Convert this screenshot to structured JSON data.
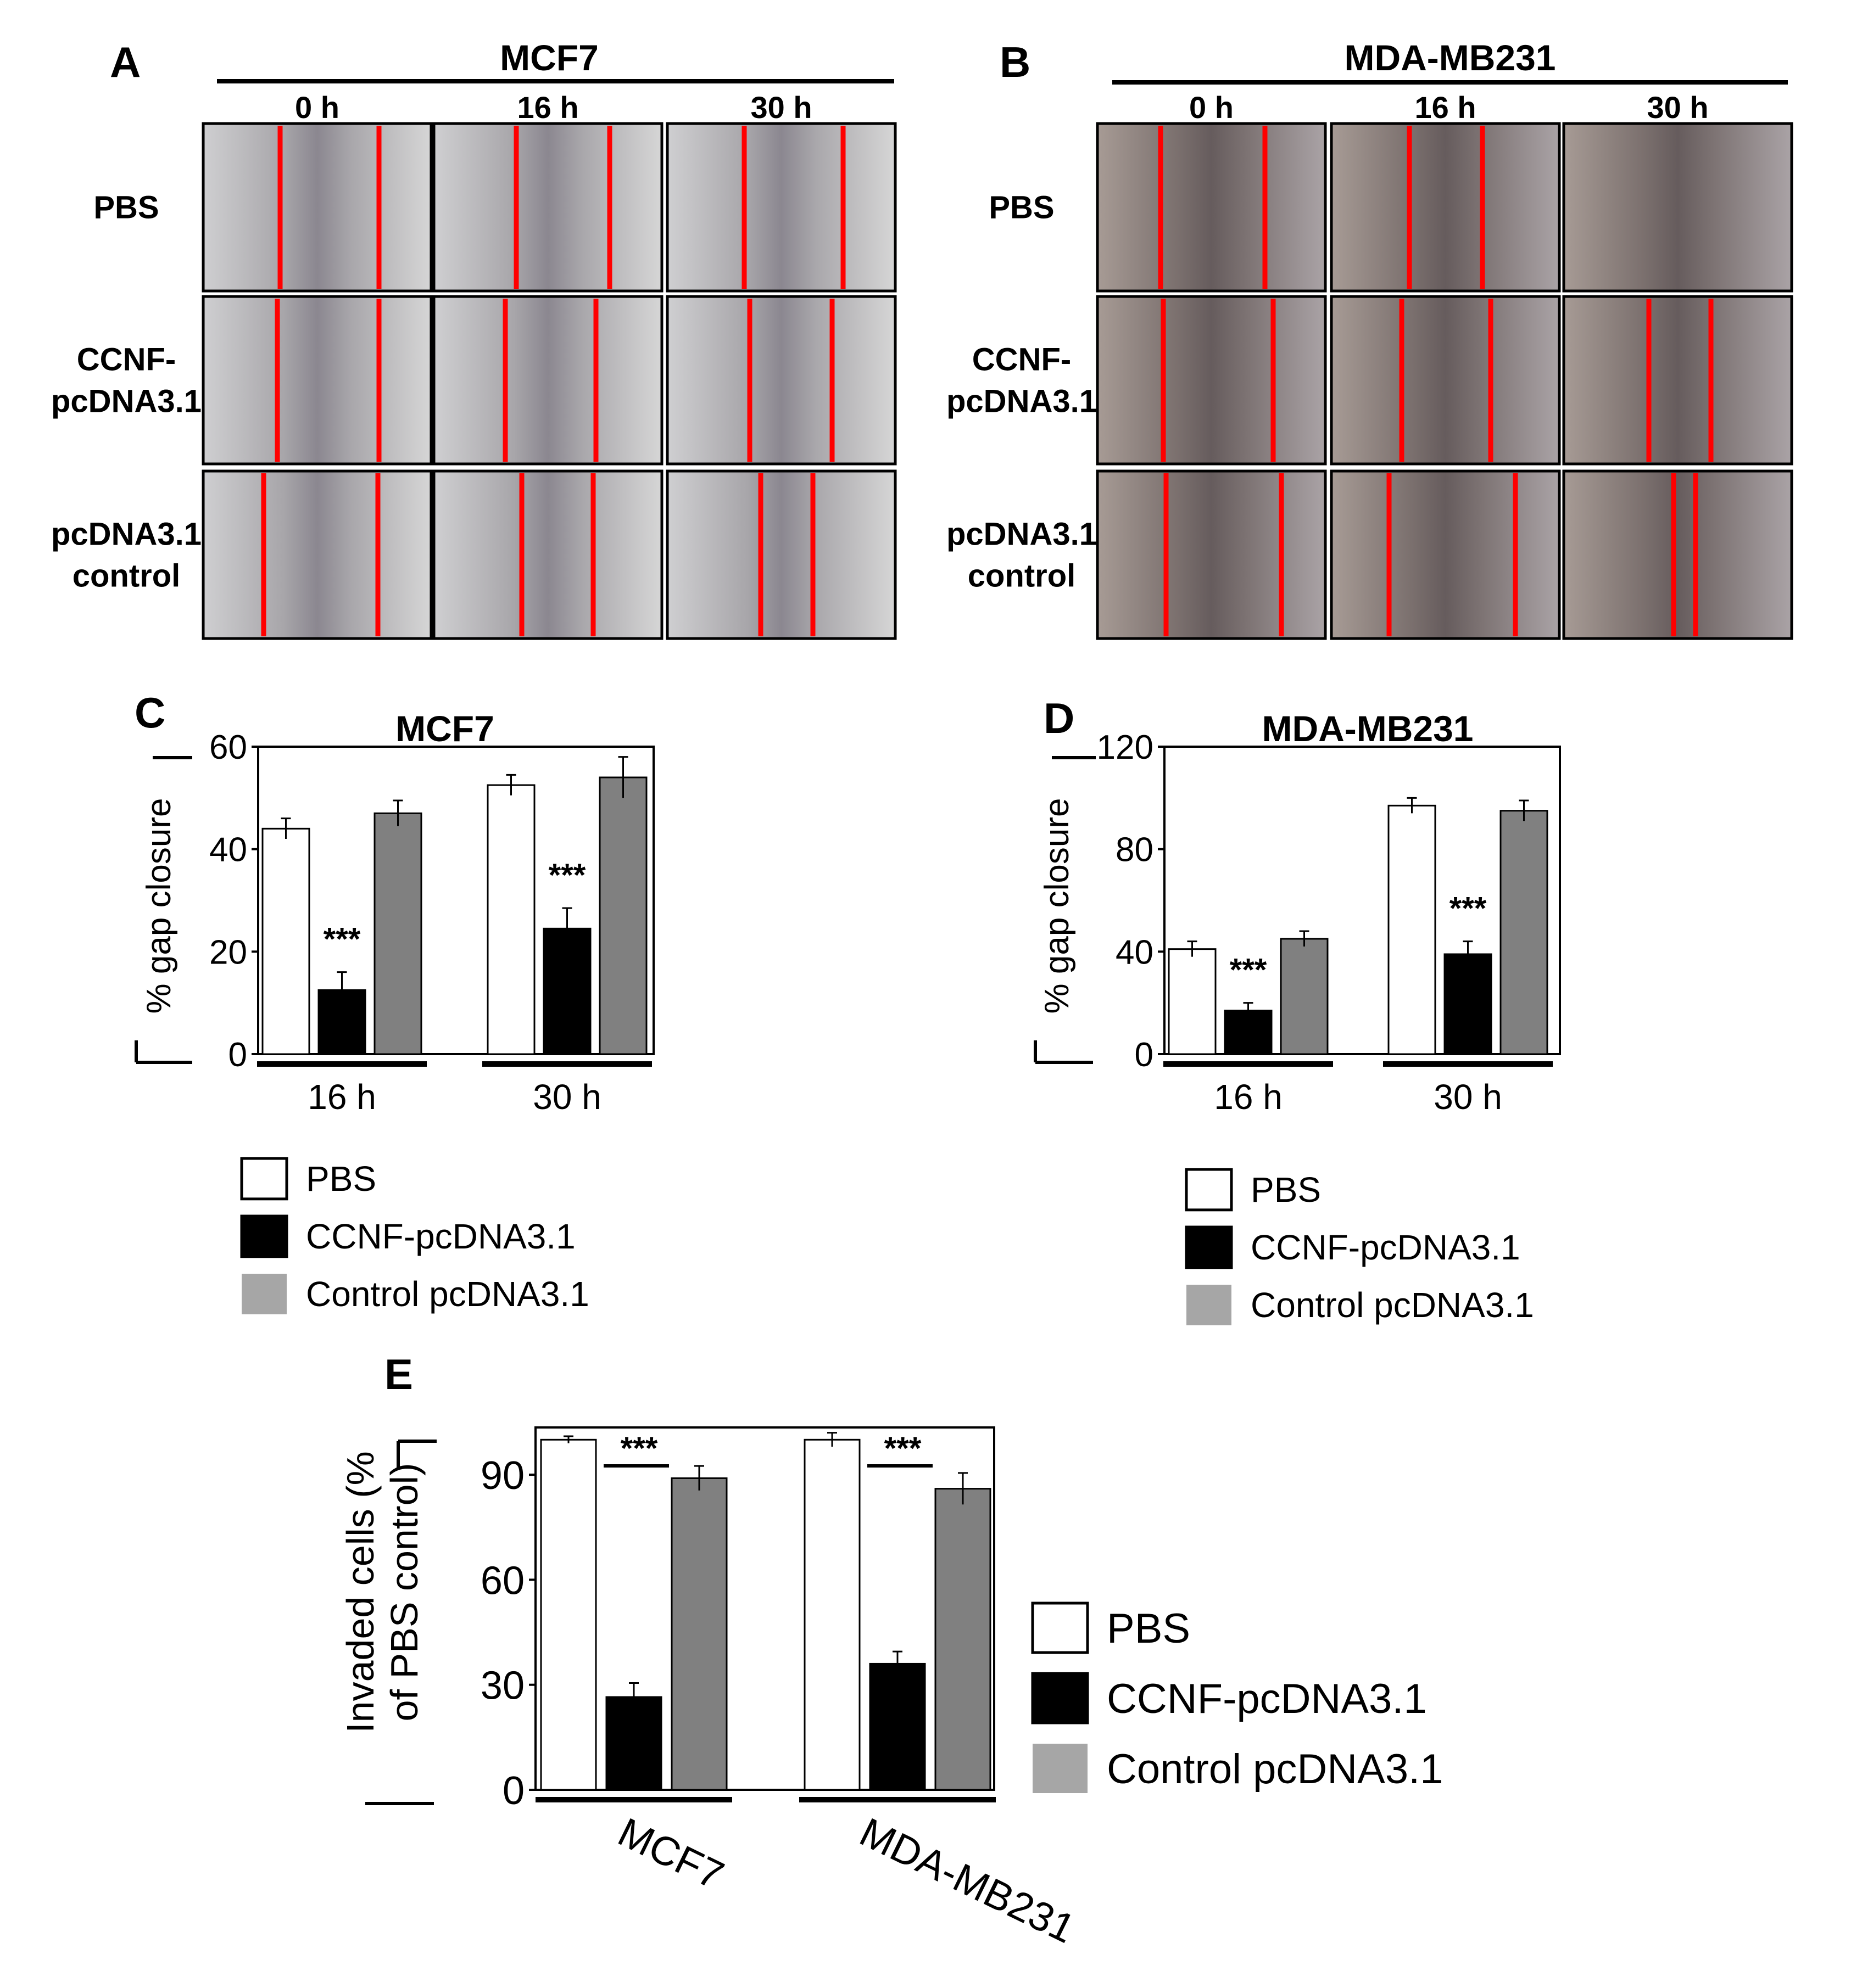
{
  "panels": {
    "A": {
      "label": "A",
      "title": "MCF7",
      "times": [
        "0 h",
        "16 h",
        "30 h"
      ],
      "rows": [
        [
          "PBS"
        ],
        [
          "CCNF-",
          "pcDNA3.1"
        ],
        [
          "pcDNA3.1",
          "control"
        ]
      ]
    },
    "B": {
      "label": "B",
      "title": "MDA-MB231",
      "times": [
        "0 h",
        "16 h",
        "30 h"
      ],
      "rows": [
        [
          "PBS"
        ],
        [
          "CCNF-",
          "pcDNA3.1"
        ],
        [
          "pcDNA3.1",
          "control"
        ]
      ]
    },
    "C": {
      "label": "C"
    },
    "D": {
      "label": "D"
    },
    "E": {
      "label": "E"
    }
  },
  "colors": {
    "PBS": "#ffffff",
    "CCNF-pcDNA3.1": "#000000",
    "Control pcDNA3.1": "#808080",
    "legend_control": "#a6a6a6",
    "wound_line": "#ff0000"
  },
  "chart_data": [
    {
      "id": "C",
      "type": "bar",
      "title": "MCF7",
      "ylabel": "% gap closure",
      "categories": [
        "16 h",
        "30 h"
      ],
      "ylim": [
        0,
        60
      ],
      "yticks": [
        0,
        20,
        40,
        60
      ],
      "series": [
        {
          "name": "PBS",
          "values": [
            44,
            52.5
          ],
          "errors": [
            2,
            2
          ]
        },
        {
          "name": "CCNF-pcDNA3.1",
          "values": [
            12.5,
            24.5
          ],
          "errors": [
            3.5,
            4
          ]
        },
        {
          "name": "Control pcDNA3.1",
          "values": [
            47,
            54
          ],
          "errors": [
            2.5,
            4
          ]
        }
      ],
      "annotations": [
        "***",
        "***"
      ],
      "legend": [
        "PBS",
        "CCNF-pcDNA3.1",
        "Control pcDNA3.1"
      ]
    },
    {
      "id": "D",
      "type": "bar",
      "title": "MDA-MB231",
      "ylabel": "% gap closure",
      "categories": [
        "16 h",
        "30 h"
      ],
      "ylim": [
        0,
        120
      ],
      "yticks": [
        0,
        40,
        80,
        120
      ],
      "series": [
        {
          "name": "PBS",
          "values": [
            41,
            97
          ],
          "errors": [
            3,
            3
          ]
        },
        {
          "name": "CCNF-pcDNA3.1",
          "values": [
            17,
            39
          ],
          "errors": [
            3,
            5
          ]
        },
        {
          "name": "Control pcDNA3.1",
          "values": [
            45,
            95
          ],
          "errors": [
            3,
            4
          ]
        }
      ],
      "annotations": [
        "***",
        "***"
      ],
      "legend": [
        "PBS",
        "CCNF-pcDNA3.1",
        "Control pcDNA3.1"
      ]
    },
    {
      "id": "E",
      "type": "bar",
      "title": "",
      "ylabel": [
        "Invaded cells (%",
        "of PBS control)"
      ],
      "categories": [
        "MCF7",
        "MDA-MB231"
      ],
      "ylim": [
        0,
        103.5
      ],
      "yticks": [
        0,
        30,
        60,
        90
      ],
      "series": [
        {
          "name": "PBS",
          "values": [
            100,
            100
          ],
          "errors": [
            1,
            2
          ]
        },
        {
          "name": "CCNF-pcDNA3.1",
          "values": [
            26.5,
            36
          ],
          "errors": [
            4,
            3.5
          ]
        },
        {
          "name": "Control pcDNA3.1",
          "values": [
            89,
            86
          ],
          "errors": [
            3.5,
            4.5
          ]
        }
      ],
      "annotations": [
        "***",
        "***"
      ],
      "legend": [
        "PBS",
        "CCNF-pcDNA3.1",
        "Control pcDNA3.1"
      ]
    }
  ]
}
